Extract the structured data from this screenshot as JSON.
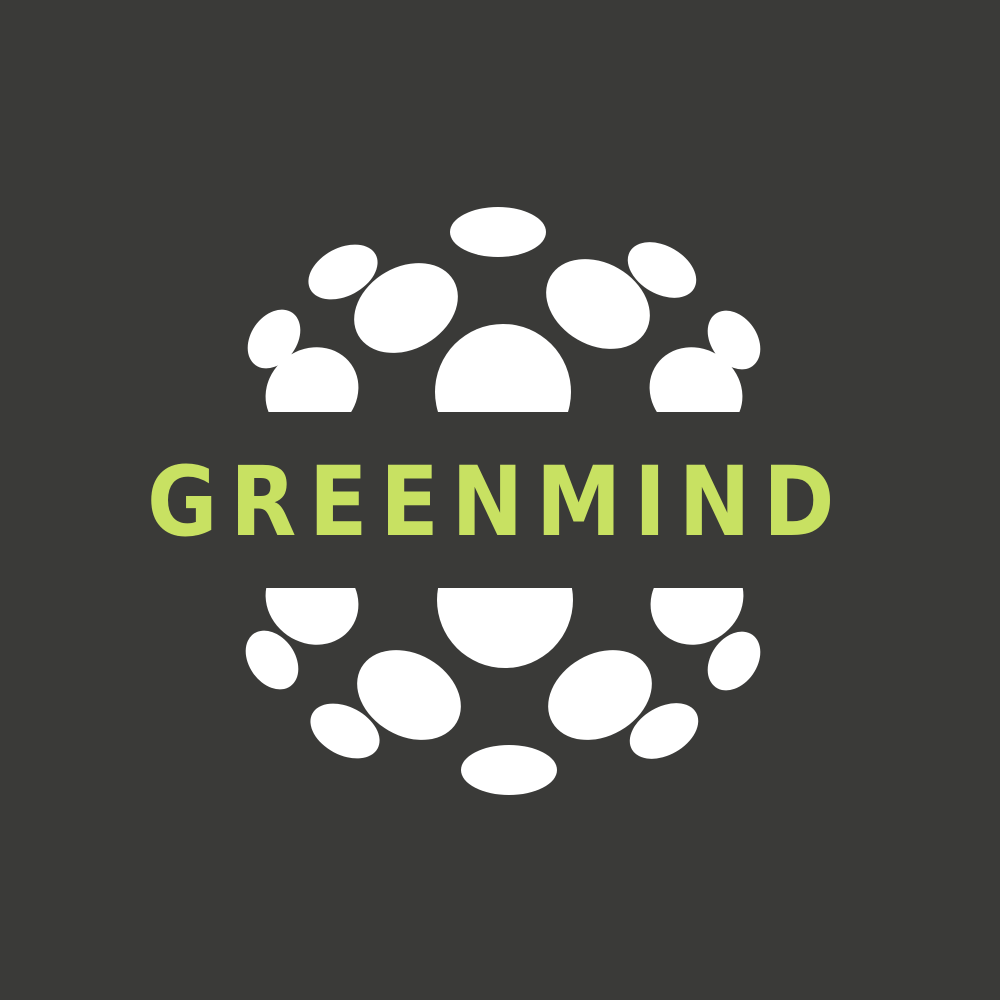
{
  "brand": {
    "name": "GREENMIND"
  },
  "colors": {
    "background": "#3a3a38",
    "globe_dots": "#ffffff",
    "wordmark": "#c8e162"
  },
  "logo": {
    "emblem_icon": "dotted-globe-icon"
  }
}
